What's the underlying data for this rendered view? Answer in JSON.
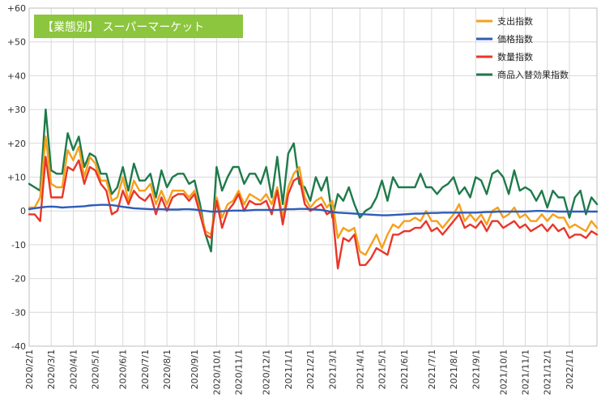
{
  "chart_data": {
    "type": "line",
    "title": "【業態別】 スーパーマーケット",
    "xlabel": "",
    "ylabel": "",
    "ylim": [
      -40,
      60
    ],
    "yticks": [
      60,
      50,
      40,
      30,
      20,
      10,
      0,
      -10,
      -20,
      -30,
      -40
    ],
    "ytick_labels": [
      "+60",
      "+50",
      "+40",
      "+30",
      "+20",
      "+10",
      "0",
      "-10",
      "-20",
      "-30",
      "-40"
    ],
    "grid": true,
    "legend_position": "top-right",
    "x_tick_labels": [
      "2020/2/1",
      "2020/3/1",
      "2020/4/1",
      "2020/5/1",
      "2020/6/1",
      "2020/7/1",
      "2020/8/1",
      "2020/9/1",
      "2020/10/1",
      "2020/11/1",
      "2020/12/1",
      "2021/1/1",
      "2021/2/1",
      "2021/3/1",
      "2021/4/1",
      "2021/5/1",
      "2021/6/1",
      "2021/7/1",
      "2021/8/1",
      "2021/9/1",
      "2021/10/1",
      "2021/11/1",
      "2021/12/1",
      "2022/1/1"
    ],
    "x_tick_weeks": [
      0,
      4,
      8,
      12,
      17,
      21,
      25,
      30,
      34,
      38,
      43,
      47,
      51,
      55,
      60,
      64,
      68,
      73,
      77,
      81,
      86,
      90,
      94,
      98
    ],
    "series": [
      {
        "name": "支出指数",
        "color": "#f5a01a",
        "values": [
          1,
          1,
          4,
          22,
          8,
          7,
          7,
          18,
          15,
          19,
          10,
          16,
          14,
          9,
          9,
          3,
          4,
          10,
          3,
          9,
          6,
          6,
          8,
          2,
          6,
          2,
          6,
          6,
          6,
          4,
          6,
          0,
          -6,
          -7,
          4,
          -2,
          2,
          3,
          6,
          2,
          5,
          4,
          3,
          5,
          2,
          7,
          -2,
          7,
          11,
          13,
          4,
          1,
          3,
          4,
          1,
          3,
          -8,
          -5,
          -6,
          -5,
          -12,
          -13,
          -10,
          -7,
          -11,
          -7,
          -4,
          -5,
          -3,
          -3,
          -2,
          -3,
          0,
          -3,
          -3,
          -5,
          -3,
          -1,
          2,
          -3,
          -1,
          -3,
          -1,
          -4,
          0,
          1,
          -2,
          -1,
          1,
          -2,
          -1,
          -3,
          -3,
          -1,
          -3,
          -1,
          -2,
          -2,
          -5,
          -4,
          -5,
          -6,
          -3,
          -5
        ]
      },
      {
        "name": "価格指数",
        "color": "#2f5cb8",
        "values": [
          0.5,
          0.8,
          1.0,
          1.2,
          1.3,
          1.2,
          1.0,
          1.1,
          1.2,
          1.3,
          1.4,
          1.6,
          1.7,
          1.8,
          1.8,
          1.7,
          1.5,
          1.2,
          1.0,
          0.8,
          0.7,
          0.6,
          0.5,
          0.5,
          0.5,
          0.4,
          0.4,
          0.4,
          0.5,
          0.5,
          0.4,
          0.2,
          0.0,
          -0.2,
          -0.2,
          -0.1,
          0.0,
          0.1,
          0.1,
          0.1,
          0.2,
          0.3,
          0.3,
          0.3,
          0.3,
          0.3,
          0.4,
          0.5,
          0.5,
          0.6,
          0.6,
          0.5,
          0.4,
          0.3,
          0.0,
          -0.3,
          -0.5,
          -0.6,
          -0.7,
          -0.8,
          -0.9,
          -1.0,
          -1.1,
          -1.2,
          -1.3,
          -1.3,
          -1.2,
          -1.1,
          -1.0,
          -0.9,
          -0.8,
          -0.8,
          -0.7,
          -0.6,
          -0.6,
          -0.5,
          -0.5,
          -0.5,
          -0.5,
          -0.5,
          -0.5,
          -0.5,
          -0.4,
          -0.3,
          -0.3,
          -0.2,
          -0.2,
          -0.2,
          -0.2,
          -0.2,
          -0.2,
          -0.1,
          0.0,
          0.0,
          -0.1,
          -0.1,
          -0.2,
          -0.2,
          -0.2,
          -0.2,
          -0.2,
          -0.2,
          -0.2,
          -0.2
        ]
      },
      {
        "name": "数量指数",
        "color": "#e8372a",
        "values": [
          -1,
          -1,
          -3,
          16,
          4,
          4,
          4,
          13,
          12,
          15,
          8,
          13,
          12,
          8,
          6,
          -1,
          0,
          6,
          2,
          6,
          4,
          3,
          5,
          -1,
          4,
          0,
          4,
          5,
          5,
          3,
          5,
          -1,
          -7,
          -8,
          3,
          -5,
          0,
          2,
          5,
          0,
          3,
          2,
          2,
          3,
          -1,
          6,
          -4,
          5,
          9,
          10,
          2,
          0,
          1,
          2,
          -1,
          0,
          -17,
          -8,
          -9,
          -7,
          -16,
          -16,
          -14,
          -11,
          -12,
          -13,
          -7,
          -7,
          -6,
          -6,
          -5,
          -5,
          -3,
          -6,
          -5,
          -7,
          -5,
          -3,
          -1,
          -5,
          -4,
          -5,
          -3,
          -6,
          -3,
          -3,
          -5,
          -4,
          -3,
          -5,
          -4,
          -6,
          -5,
          -4,
          -6,
          -4,
          -6,
          -5,
          -8,
          -7,
          -7,
          -8,
          -6,
          -7
        ]
      },
      {
        "name": "商品入替効果指数",
        "color": "#1e7a4a",
        "values": [
          8,
          7,
          6,
          30,
          12,
          11,
          11,
          23,
          18,
          22,
          13,
          17,
          16,
          11,
          11,
          5,
          7,
          13,
          6,
          14,
          9,
          9,
          11,
          4,
          12,
          7,
          10,
          11,
          11,
          8,
          9,
          2,
          -7,
          -12,
          13,
          6,
          10,
          13,
          13,
          8,
          11,
          11,
          8,
          13,
          4,
          16,
          2,
          17,
          20,
          8,
          7,
          3,
          10,
          6,
          10,
          -2,
          5,
          3,
          7,
          2,
          -2,
          0,
          1,
          4,
          9,
          3,
          10,
          7,
          7,
          7,
          7,
          11,
          7,
          7,
          5,
          7,
          8,
          10,
          5,
          7,
          4,
          10,
          9,
          5,
          11,
          12,
          10,
          5,
          12,
          6,
          7,
          6,
          3,
          6,
          1,
          6,
          4,
          4,
          -2,
          4,
          6,
          -1,
          4,
          2
        ]
      }
    ]
  }
}
